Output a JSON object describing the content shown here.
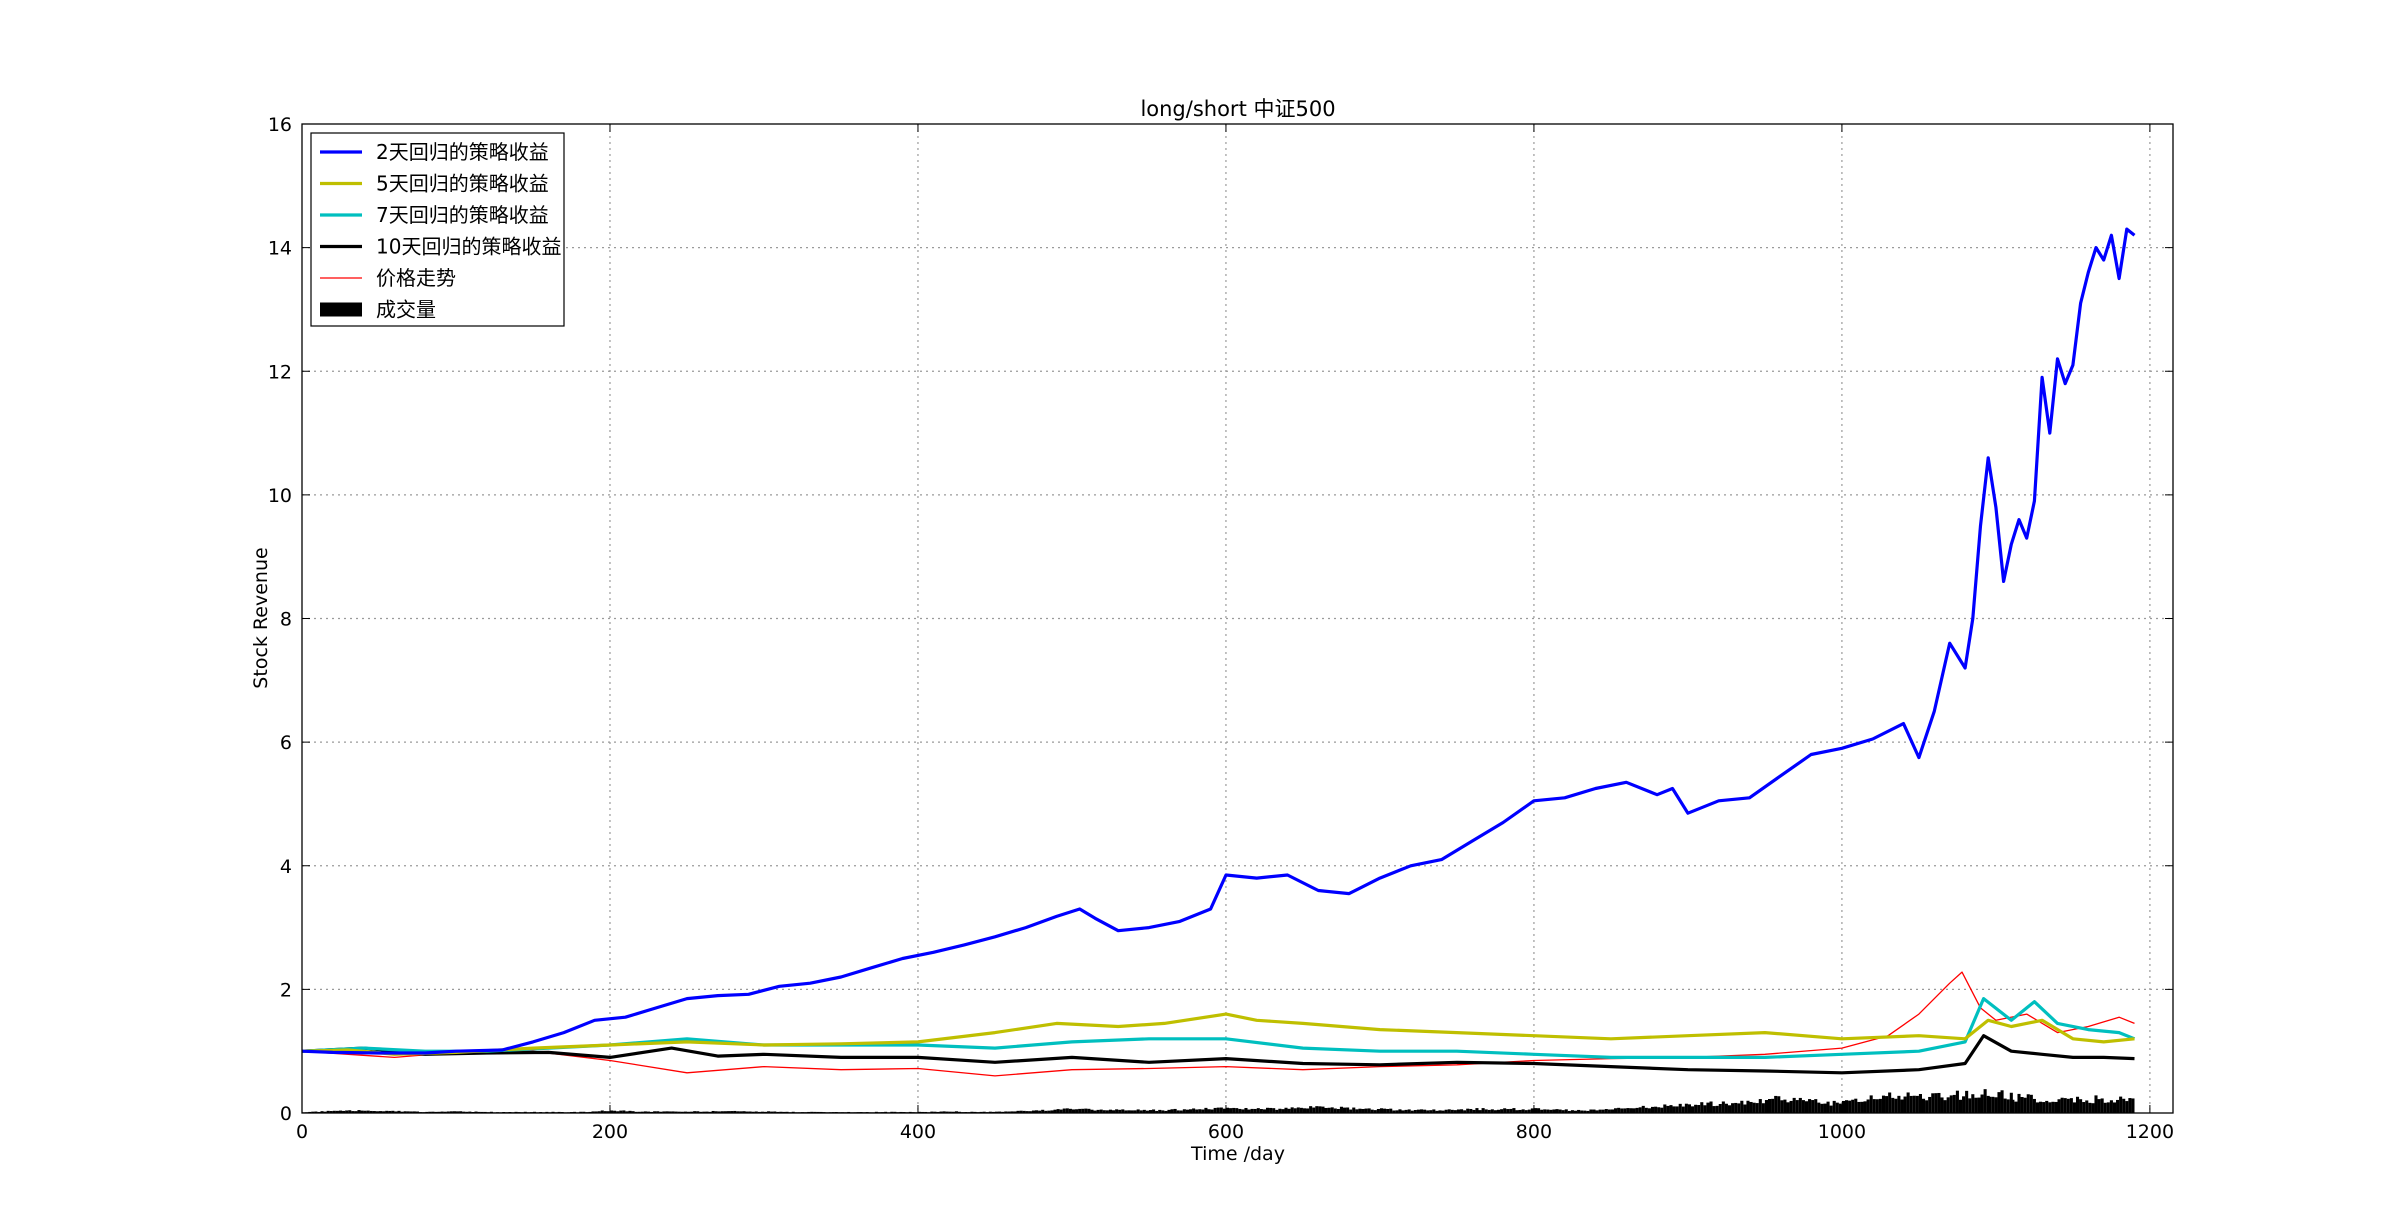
{
  "chart_data": {
    "type": "line",
    "title": "long/short 中证500",
    "xlabel": "Time /day",
    "ylabel": "Stock Revenue",
    "xlim": [
      0,
      1215
    ],
    "ylim": [
      0,
      16
    ],
    "xticks": [
      "0",
      "200",
      "400",
      "600",
      "800",
      "1000",
      "1200"
    ],
    "yticks": [
      "0",
      "2",
      "4",
      "6",
      "8",
      "10",
      "12",
      "14",
      "16"
    ],
    "grid": true,
    "legend_position": "top-left",
    "series": [
      {
        "name": "2天回归的策略收益",
        "color": "#0000ff",
        "kind": "line",
        "points": [
          [
            0,
            1.0
          ],
          [
            20,
            0.98
          ],
          [
            50,
            0.97
          ],
          [
            80,
            0.97
          ],
          [
            100,
            1.0
          ],
          [
            130,
            1.02
          ],
          [
            150,
            1.15
          ],
          [
            170,
            1.3
          ],
          [
            190,
            1.5
          ],
          [
            210,
            1.55
          ],
          [
            230,
            1.7
          ],
          [
            250,
            1.85
          ],
          [
            270,
            1.9
          ],
          [
            290,
            1.92
          ],
          [
            310,
            2.05
          ],
          [
            330,
            2.1
          ],
          [
            350,
            2.2
          ],
          [
            370,
            2.35
          ],
          [
            390,
            2.5
          ],
          [
            410,
            2.6
          ],
          [
            430,
            2.72
          ],
          [
            450,
            2.85
          ],
          [
            470,
            3.0
          ],
          [
            490,
            3.18
          ],
          [
            505,
            3.3
          ],
          [
            515,
            3.15
          ],
          [
            530,
            2.95
          ],
          [
            550,
            3.0
          ],
          [
            570,
            3.1
          ],
          [
            590,
            3.3
          ],
          [
            600,
            3.85
          ],
          [
            620,
            3.8
          ],
          [
            640,
            3.85
          ],
          [
            660,
            3.6
          ],
          [
            680,
            3.55
          ],
          [
            700,
            3.8
          ],
          [
            720,
            4.0
          ],
          [
            740,
            4.1
          ],
          [
            760,
            4.4
          ],
          [
            780,
            4.7
          ],
          [
            800,
            5.05
          ],
          [
            820,
            5.1
          ],
          [
            840,
            5.25
          ],
          [
            860,
            5.35
          ],
          [
            880,
            5.15
          ],
          [
            890,
            5.25
          ],
          [
            900,
            4.85
          ],
          [
            920,
            5.05
          ],
          [
            940,
            5.1
          ],
          [
            960,
            5.45
          ],
          [
            980,
            5.8
          ],
          [
            1000,
            5.9
          ],
          [
            1020,
            6.05
          ],
          [
            1040,
            6.3
          ],
          [
            1050,
            5.75
          ],
          [
            1060,
            6.5
          ],
          [
            1070,
            7.6
          ],
          [
            1080,
            7.2
          ],
          [
            1085,
            8.0
          ],
          [
            1090,
            9.5
          ],
          [
            1095,
            10.6
          ],
          [
            1100,
            9.8
          ],
          [
            1105,
            8.6
          ],
          [
            1110,
            9.2
          ],
          [
            1115,
            9.6
          ],
          [
            1120,
            9.3
          ],
          [
            1125,
            9.9
          ],
          [
            1130,
            11.9
          ],
          [
            1135,
            11.0
          ],
          [
            1140,
            12.2
          ],
          [
            1145,
            11.8
          ],
          [
            1150,
            12.1
          ],
          [
            1155,
            13.1
          ],
          [
            1160,
            13.6
          ],
          [
            1165,
            14.0
          ],
          [
            1170,
            13.8
          ],
          [
            1175,
            14.2
          ],
          [
            1180,
            13.5
          ],
          [
            1185,
            14.3
          ],
          [
            1190,
            14.2
          ]
        ]
      },
      {
        "name": "5天回归的策略收益",
        "color": "#bfbf00",
        "kind": "line",
        "points": [
          [
            0,
            1.0
          ],
          [
            30,
            1.02
          ],
          [
            60,
            0.95
          ],
          [
            100,
            0.98
          ],
          [
            150,
            1.05
          ],
          [
            200,
            1.1
          ],
          [
            250,
            1.15
          ],
          [
            300,
            1.1
          ],
          [
            350,
            1.12
          ],
          [
            400,
            1.15
          ],
          [
            450,
            1.3
          ],
          [
            490,
            1.45
          ],
          [
            530,
            1.4
          ],
          [
            560,
            1.45
          ],
          [
            600,
            1.6
          ],
          [
            620,
            1.5
          ],
          [
            650,
            1.45
          ],
          [
            700,
            1.35
          ],
          [
            750,
            1.3
          ],
          [
            800,
            1.25
          ],
          [
            850,
            1.2
          ],
          [
            900,
            1.25
          ],
          [
            950,
            1.3
          ],
          [
            1000,
            1.2
          ],
          [
            1050,
            1.25
          ],
          [
            1080,
            1.2
          ],
          [
            1095,
            1.5
          ],
          [
            1110,
            1.4
          ],
          [
            1130,
            1.5
          ],
          [
            1150,
            1.2
          ],
          [
            1170,
            1.15
          ],
          [
            1190,
            1.2
          ]
        ]
      },
      {
        "name": "7天回归的策略收益",
        "color": "#00bfbf",
        "kind": "line",
        "points": [
          [
            0,
            1.0
          ],
          [
            40,
            1.05
          ],
          [
            80,
            1.0
          ],
          [
            120,
            1.0
          ],
          [
            160,
            1.05
          ],
          [
            200,
            1.1
          ],
          [
            250,
            1.2
          ],
          [
            300,
            1.1
          ],
          [
            350,
            1.1
          ],
          [
            400,
            1.1
          ],
          [
            450,
            1.05
          ],
          [
            500,
            1.15
          ],
          [
            550,
            1.2
          ],
          [
            600,
            1.2
          ],
          [
            650,
            1.05
          ],
          [
            700,
            1.0
          ],
          [
            750,
            1.0
          ],
          [
            800,
            0.95
          ],
          [
            850,
            0.9
          ],
          [
            900,
            0.9
          ],
          [
            950,
            0.9
          ],
          [
            1000,
            0.95
          ],
          [
            1050,
            1.0
          ],
          [
            1080,
            1.15
          ],
          [
            1092,
            1.85
          ],
          [
            1110,
            1.5
          ],
          [
            1125,
            1.8
          ],
          [
            1140,
            1.45
          ],
          [
            1160,
            1.35
          ],
          [
            1180,
            1.3
          ],
          [
            1190,
            1.2
          ]
        ]
      },
      {
        "name": "10天回归的策略收益",
        "color": "#000000",
        "kind": "line",
        "points": [
          [
            0,
            1.0
          ],
          [
            40,
            1.05
          ],
          [
            80,
            0.95
          ],
          [
            120,
            0.97
          ],
          [
            160,
            0.98
          ],
          [
            200,
            0.9
          ],
          [
            240,
            1.05
          ],
          [
            270,
            0.92
          ],
          [
            300,
            0.95
          ],
          [
            350,
            0.9
          ],
          [
            400,
            0.9
          ],
          [
            450,
            0.82
          ],
          [
            500,
            0.9
          ],
          [
            550,
            0.82
          ],
          [
            600,
            0.88
          ],
          [
            650,
            0.8
          ],
          [
            700,
            0.78
          ],
          [
            750,
            0.82
          ],
          [
            800,
            0.8
          ],
          [
            850,
            0.75
          ],
          [
            900,
            0.7
          ],
          [
            950,
            0.68
          ],
          [
            1000,
            0.65
          ],
          [
            1050,
            0.7
          ],
          [
            1080,
            0.8
          ],
          [
            1092,
            1.25
          ],
          [
            1110,
            1.0
          ],
          [
            1130,
            0.95
          ],
          [
            1150,
            0.9
          ],
          [
            1170,
            0.9
          ],
          [
            1190,
            0.88
          ]
        ]
      },
      {
        "name": "价格走势",
        "color": "#ff0000",
        "kind": "thin-line",
        "points": [
          [
            0,
            1.0
          ],
          [
            30,
            0.95
          ],
          [
            60,
            0.9
          ],
          [
            100,
            0.98
          ],
          [
            150,
            1.0
          ],
          [
            200,
            0.85
          ],
          [
            250,
            0.65
          ],
          [
            300,
            0.75
          ],
          [
            350,
            0.7
          ],
          [
            400,
            0.72
          ],
          [
            450,
            0.6
          ],
          [
            500,
            0.7
          ],
          [
            550,
            0.72
          ],
          [
            600,
            0.75
          ],
          [
            650,
            0.7
          ],
          [
            700,
            0.75
          ],
          [
            750,
            0.78
          ],
          [
            800,
            0.85
          ],
          [
            850,
            0.88
          ],
          [
            900,
            0.9
          ],
          [
            950,
            0.95
          ],
          [
            1000,
            1.05
          ],
          [
            1030,
            1.25
          ],
          [
            1050,
            1.6
          ],
          [
            1070,
            2.1
          ],
          [
            1078,
            2.28
          ],
          [
            1090,
            1.7
          ],
          [
            1100,
            1.5
          ],
          [
            1120,
            1.6
          ],
          [
            1140,
            1.3
          ],
          [
            1160,
            1.4
          ],
          [
            1180,
            1.55
          ],
          [
            1190,
            1.45
          ]
        ]
      },
      {
        "name": "成交量",
        "color": "#000000",
        "kind": "bar",
        "points": [
          [
            0,
            0.02
          ],
          [
            20,
            0.04
          ],
          [
            40,
            0.05
          ],
          [
            60,
            0.04
          ],
          [
            80,
            0.02
          ],
          [
            100,
            0.03
          ],
          [
            120,
            0.02
          ],
          [
            140,
            0.02
          ],
          [
            160,
            0.02
          ],
          [
            180,
            0.02
          ],
          [
            200,
            0.05
          ],
          [
            220,
            0.03
          ],
          [
            240,
            0.03
          ],
          [
            260,
            0.03
          ],
          [
            280,
            0.04
          ],
          [
            300,
            0.03
          ],
          [
            320,
            0.02
          ],
          [
            340,
            0.02
          ],
          [
            360,
            0.02
          ],
          [
            380,
            0.02
          ],
          [
            400,
            0.02
          ],
          [
            420,
            0.03
          ],
          [
            440,
            0.02
          ],
          [
            460,
            0.03
          ],
          [
            480,
            0.06
          ],
          [
            500,
            0.08
          ],
          [
            520,
            0.06
          ],
          [
            540,
            0.06
          ],
          [
            560,
            0.06
          ],
          [
            580,
            0.08
          ],
          [
            600,
            0.1
          ],
          [
            620,
            0.08
          ],
          [
            640,
            0.1
          ],
          [
            660,
            0.12
          ],
          [
            680,
            0.1
          ],
          [
            700,
            0.08
          ],
          [
            720,
            0.06
          ],
          [
            740,
            0.06
          ],
          [
            760,
            0.08
          ],
          [
            780,
            0.08
          ],
          [
            800,
            0.08
          ],
          [
            820,
            0.06
          ],
          [
            840,
            0.06
          ],
          [
            860,
            0.1
          ],
          [
            880,
            0.14
          ],
          [
            900,
            0.16
          ],
          [
            920,
            0.2
          ],
          [
            940,
            0.22
          ],
          [
            960,
            0.3
          ],
          [
            980,
            0.24
          ],
          [
            1000,
            0.2
          ],
          [
            1020,
            0.34
          ],
          [
            1040,
            0.36
          ],
          [
            1060,
            0.34
          ],
          [
            1080,
            0.4
          ],
          [
            1095,
            0.42
          ],
          [
            1110,
            0.34
          ],
          [
            1130,
            0.28
          ],
          [
            1150,
            0.26
          ],
          [
            1170,
            0.3
          ],
          [
            1190,
            0.24
          ]
        ]
      }
    ]
  }
}
